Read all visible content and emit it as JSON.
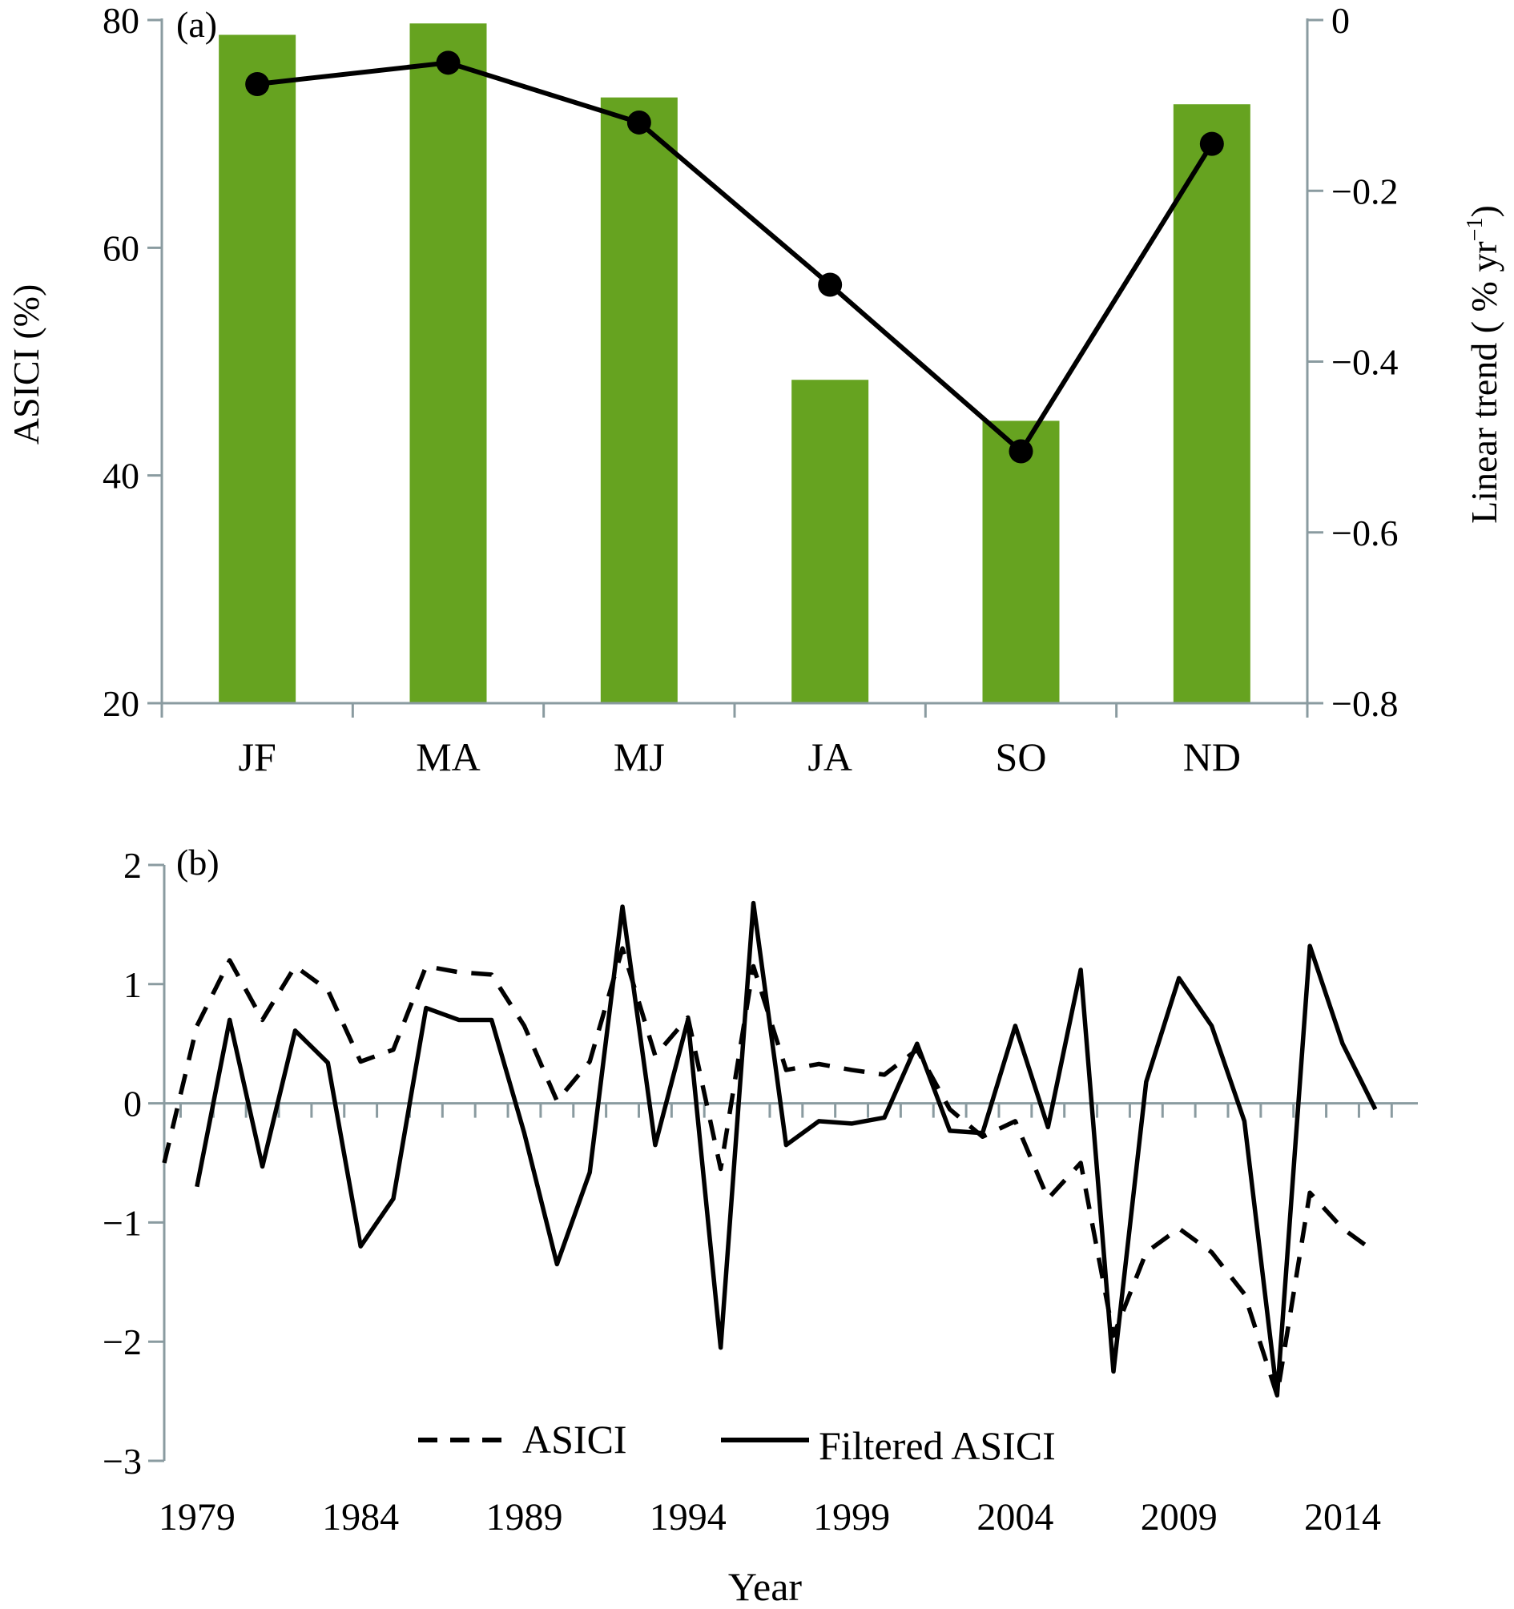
{
  "chart_data": [
    {
      "panel": "(a)",
      "type": "bar",
      "categories": [
        "JF",
        "MA",
        "MJ",
        "JA",
        "SO",
        "ND"
      ],
      "series": [
        {
          "name": "ASICI (%)",
          "kind": "bar",
          "axis": "left",
          "color": "#66a320",
          "values": [
            78.7,
            79.7,
            73.2,
            48.4,
            44.8,
            72.6
          ]
        },
        {
          "name": "Linear trend (% yr-1)",
          "kind": "line",
          "axis": "right",
          "color": "#000000",
          "values": [
            -0.075,
            -0.05,
            -0.12,
            -0.31,
            -0.505,
            -0.145
          ]
        }
      ],
      "yleft": {
        "label": "ASICI (%)",
        "lim": [
          20,
          80
        ],
        "ticks": [
          20,
          40,
          60,
          80
        ],
        "tick_labels": [
          "20",
          "40",
          "60",
          "80"
        ]
      },
      "yright": {
        "label_main": "Linear trend ( % yr",
        "label_sup": "−1",
        "label_end": ")",
        "lim": [
          -0.8,
          0
        ],
        "ticks": [
          0,
          -0.2,
          -0.4,
          -0.6,
          -0.8
        ],
        "tick_labels": [
          "0",
          "−0.2",
          "−0.4",
          "−0.6",
          "−0.8"
        ]
      }
    },
    {
      "panel": "(b)",
      "type": "line",
      "x": [
        1979,
        1980,
        1981,
        1982,
        1983,
        1984,
        1985,
        1986,
        1987,
        1988,
        1989,
        1990,
        1991,
        1992,
        1993,
        1994,
        1995,
        1996,
        1997,
        1998,
        1999,
        2000,
        2001,
        2002,
        2003,
        2004,
        2005,
        2006,
        2007,
        2008,
        2009,
        2010,
        2011,
        2012,
        2013,
        2014,
        2015
      ],
      "series": [
        {
          "name": "ASICI",
          "style": "dashed",
          "values": [
            0.65,
            1.2,
            0.7,
            1.15,
            0.95,
            0.35,
            0.45,
            1.15,
            1.1,
            1.08,
            0.65,
            0.02,
            0.35,
            1.3,
            0.4,
            0.72,
            -0.55,
            1.15,
            0.28,
            0.33,
            0.28,
            0.24,
            0.45,
            -0.05,
            -0.28,
            -0.15,
            -0.8,
            -0.5,
            -1.95,
            -1.25,
            -1.05,
            -1.25,
            -1.6,
            -2.45,
            -0.75,
            -1.05,
            -1.25
          ]
        },
        {
          "name": "Filtered ASICI",
          "style": "solid",
          "values": [
            -0.7,
            0.7,
            -0.53,
            0.61,
            0.34,
            -1.2,
            -0.8,
            0.8,
            0.7,
            0.7,
            -0.25,
            -1.35,
            -0.58,
            1.65,
            -0.35,
            0.7,
            -2.05,
            1.68,
            -0.35,
            -0.15,
            -0.17,
            -0.12,
            0.5,
            -0.23,
            -0.25,
            0.65,
            -0.2,
            1.12,
            -2.25,
            0.18,
            1.05,
            0.65,
            -0.15,
            -2.45,
            1.32,
            0.5,
            -0.05
          ]
        }
      ],
      "xlabel": "Year",
      "xtick_labels": [
        "1979",
        "1984",
        "1989",
        "1994",
        "1999",
        "2004",
        "2009",
        "2014"
      ],
      "xticks": [
        1979,
        1984,
        1989,
        1994,
        1999,
        2004,
        2009,
        2014
      ],
      "ylim": [
        -3,
        2
      ],
      "yticks": [
        2,
        1,
        0,
        -1,
        -2,
        -3
      ],
      "ytick_labels": [
        "2",
        "1",
        "0",
        "−1",
        "−2",
        "−3"
      ],
      "legend": {
        "placement": "bottom-center",
        "labels": [
          "ASICI",
          "Filtered ASICI"
        ]
      }
    }
  ]
}
